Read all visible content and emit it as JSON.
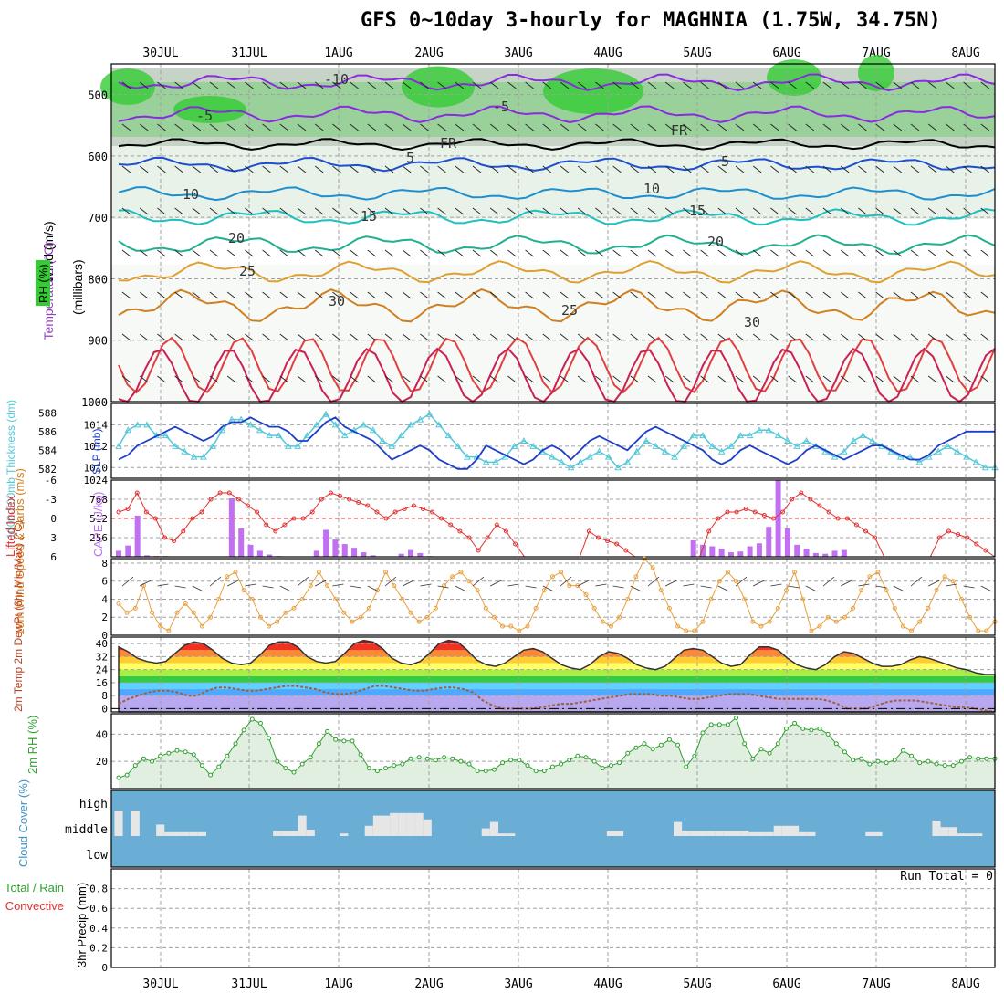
{
  "title": "GFS 0~10day 3-hourly for MAGHNIA (1.75W, 34.75N)",
  "dates": [
    "30JUL",
    "31JUL",
    "1AUG",
    "2AUG",
    "3AUG",
    "4AUG",
    "5AUG",
    "6AUG",
    "7AUG",
    "8AUG"
  ],
  "colors": {
    "grid": "#a0a0a0",
    "slp": "#55c8d8",
    "thickness": "#1d3fc9",
    "cape": "#c070f0",
    "lifted": "#e03030",
    "wind": "#e8a040",
    "rh": "#30a030",
    "cloud_bg": "#6aaed6",
    "cloud_fill": "#e6e6e6",
    "dewpt": "#a0603a"
  },
  "chart_data": [
    {
      "type": "heatmap",
      "panel": "upper-air",
      "ylabel_lines": [
        "Wind (m/s)",
        "Temperature (°C)",
        "RH (%)"
      ],
      "ylabel2": "(millibars)",
      "yticks": [
        500,
        600,
        700,
        800,
        900,
        1000
      ],
      "ylim": [
        1000,
        450
      ],
      "contour_labels": [
        "-10",
        "-5",
        "-5",
        "FR",
        "FR",
        "5",
        "5",
        "10",
        "10",
        "15",
        "15",
        "20",
        "20",
        "25",
        "25",
        "30",
        "30"
      ]
    },
    {
      "type": "line",
      "panel": "slp-thickness",
      "ylabel_left": "1000-500mb Thickness (dm)",
      "ylabel_right": "SLP (mb)",
      "yticks_left": [
        582,
        584,
        586,
        588
      ],
      "yticks_right": [
        1010,
        1012,
        1014
      ],
      "ylim_slp": [
        1009,
        1016
      ],
      "series": [
        {
          "name": "SLP (mb)",
          "values": [
            1012,
            1013.5,
            1014,
            1014,
            1013,
            1013,
            1012,
            1011.5,
            1011,
            1011,
            1012,
            1013.5,
            1014.5,
            1014.5,
            1014,
            1013.5,
            1013,
            1013,
            1012,
            1012,
            1013,
            1014,
            1015,
            1014,
            1013,
            1013.5,
            1014,
            1013.5,
            1012.5,
            1012,
            1013,
            1014,
            1014.5,
            1015,
            1014,
            1013,
            1012,
            1011,
            1011,
            1010.5,
            1010.5,
            1011,
            1012,
            1012.5,
            1012,
            1011.5,
            1011,
            1010.5,
            1010,
            1010.5,
            1011,
            1011.5,
            1011,
            1010,
            1010.5,
            1011.5,
            1012.5,
            1012,
            1011.5,
            1011,
            1012,
            1013,
            1013,
            1012,
            1011.5,
            1012,
            1013,
            1013,
            1013.5,
            1013.5,
            1013,
            1012.5,
            1012,
            1012.5,
            1012,
            1011.5,
            1011,
            1011.5,
            1012.5,
            1013,
            1012.5,
            1012,
            1011.5,
            1011,
            1011,
            1010.5,
            1011,
            1011.5,
            1012,
            1011.5,
            1011,
            1010.5,
            1010,
            1010
          ]
        },
        {
          "name": "1000-500mb Thickness (dm)",
          "values": [
            583,
            583.5,
            584.5,
            585,
            585.5,
            586,
            586.5,
            586,
            585.5,
            585,
            585.5,
            586.5,
            587,
            587,
            587.5,
            587,
            586.5,
            586.5,
            586,
            585,
            585,
            586,
            587,
            587.5,
            586.5,
            586,
            585.5,
            585,
            584,
            583,
            583.5,
            584,
            584.5,
            584,
            583,
            582.5,
            582,
            582,
            583,
            584.5,
            584,
            583.5,
            583,
            582.5,
            583,
            584,
            584.5,
            584,
            583,
            584,
            585,
            585.5,
            585,
            584.5,
            584,
            585,
            586,
            586.5,
            586,
            585.5,
            585,
            584.5,
            584,
            583,
            582.5,
            583,
            584,
            584.5,
            584,
            583.5,
            583,
            582.5,
            583,
            584,
            584.5,
            584,
            583.5,
            583,
            583.5,
            584,
            584.5,
            584.5,
            584,
            583.5,
            583,
            583,
            583.5,
            584.5,
            585,
            585.5,
            586,
            586,
            586,
            586
          ]
        }
      ]
    },
    {
      "type": "bar",
      "panel": "cape-li",
      "ylabel_left": "Lifted Index",
      "ylabel_right": "CAPE (J/kg)",
      "yticks_left": [
        "-6",
        "-3",
        "0",
        "3",
        "6"
      ],
      "yticks_right": [
        256,
        512,
        768,
        1024
      ],
      "ylim_cape": [
        0,
        1024
      ],
      "series": [
        {
          "name": "CAPE (J/kg)",
          "values": [
            80,
            150,
            550,
            20,
            10,
            10,
            0,
            0,
            0,
            0,
            0,
            0,
            780,
            380,
            160,
            80,
            30,
            10,
            0,
            0,
            0,
            80,
            360,
            230,
            170,
            120,
            60,
            20,
            0,
            0,
            40,
            90,
            50,
            10,
            0,
            0,
            0,
            0,
            0,
            0,
            0,
            0,
            0,
            0,
            0,
            0,
            0,
            0,
            0,
            0,
            0,
            0,
            0,
            0,
            0,
            0,
            0,
            0,
            0,
            0,
            0,
            220,
            160,
            140,
            110,
            60,
            70,
            140,
            180,
            400,
            1024,
            380,
            160,
            110,
            50,
            40,
            80,
            90,
            0,
            0,
            0,
            0,
            0,
            0,
            0,
            0,
            0,
            0,
            0,
            0,
            0,
            0,
            0,
            0
          ]
        },
        {
          "name": "Lifted Index",
          "values": [
            -1,
            -1.5,
            -4,
            -1,
            0,
            3,
            3.5,
            2,
            0,
            -1,
            -3,
            -4,
            -4,
            -3,
            -2,
            -1,
            1,
            2,
            1,
            0,
            0,
            -1,
            -3,
            -4,
            -3.5,
            -3,
            -2.5,
            -2,
            -1,
            0,
            -1,
            -1.5,
            -2,
            -1.5,
            -1,
            0,
            1,
            2,
            3,
            5,
            3,
            1,
            2,
            4,
            6,
            6,
            6,
            6,
            6,
            6,
            6,
            2,
            3,
            3.5,
            4,
            5,
            6,
            6,
            6,
            6,
            6,
            6,
            6,
            6,
            2,
            0,
            -1,
            -1,
            -1.5,
            -1,
            -0.5,
            0,
            -1,
            -3,
            -4,
            -3,
            -2,
            -1,
            0,
            0,
            1,
            2,
            3,
            6,
            6,
            6,
            6,
            6,
            6,
            3,
            2,
            2.5,
            3,
            4,
            5,
            6
          ]
        }
      ]
    },
    {
      "type": "line",
      "panel": "wind",
      "ylabel": "10m Wind Speed & Barbs (m/s)",
      "yticks": [
        0,
        2,
        4,
        6,
        8
      ],
      "ylim": [
        0,
        8.5
      ],
      "series": [
        {
          "name": "10m Wind Speed",
          "values": [
            3.5,
            2.5,
            3,
            5.5,
            2.5,
            1,
            0.5,
            2.5,
            3.5,
            2.5,
            1,
            2,
            4,
            6.5,
            7,
            5,
            4,
            2,
            1,
            1.5,
            2.5,
            3,
            4,
            5.5,
            7,
            5.5,
            4,
            2.5,
            1.5,
            2,
            3,
            5,
            7,
            5.5,
            4,
            2.5,
            1.5,
            2,
            3,
            5.5,
            6.5,
            7,
            6,
            5,
            3,
            2,
            1,
            1,
            0.5,
            1,
            3,
            5,
            6.5,
            7,
            5.5,
            5.5,
            4.5,
            3,
            1.5,
            1,
            2,
            4,
            6.5,
            8.5,
            7.5,
            5,
            3,
            1,
            0.5,
            0.5,
            1.5,
            4,
            6,
            7,
            6,
            4,
            1.5,
            1,
            1.5,
            3,
            5,
            7,
            4,
            0.5,
            1,
            2,
            1.5,
            2,
            3,
            5,
            6.5,
            7,
            5,
            3,
            1,
            0.5,
            1.5,
            3,
            5,
            6.5,
            6,
            4,
            2,
            0.5,
            0.5,
            1.5
          ]
        }
      ]
    },
    {
      "type": "area",
      "panel": "temp",
      "ylabel": "2m Temp 2m DewPt (6hr Min/Max) (°C)",
      "yticks": [
        0,
        8,
        16,
        24,
        32,
        40
      ],
      "ylim": [
        -2,
        44
      ],
      "series": [
        {
          "name": "2m Temp",
          "values": [
            38,
            35,
            31,
            29,
            28,
            29,
            34,
            39,
            41,
            40,
            36,
            31,
            28,
            27,
            28,
            33,
            39,
            41,
            41,
            38,
            32,
            29,
            28,
            29,
            34,
            40,
            42,
            41,
            37,
            31,
            28,
            27,
            29,
            34,
            40,
            42,
            41,
            36,
            30,
            27,
            26,
            28,
            32,
            36,
            37,
            35,
            31,
            27,
            25,
            24,
            27,
            32,
            35,
            34,
            31,
            27,
            25,
            24,
            26,
            31,
            36,
            37,
            36,
            32,
            28,
            26,
            27,
            33,
            38,
            38,
            36,
            31,
            27,
            25,
            24,
            27,
            32,
            35,
            34,
            31,
            28,
            26,
            26,
            27,
            30,
            32,
            31,
            29,
            27,
            25,
            24,
            22,
            21,
            21
          ]
        },
        {
          "name": "2m DewPt",
          "values": [
            3,
            6,
            8,
            10,
            11,
            11,
            10,
            8,
            8,
            11,
            13,
            13,
            12,
            11,
            11,
            12,
            13,
            14,
            14,
            13,
            12,
            10,
            9,
            9,
            10,
            12,
            14,
            14,
            13,
            12,
            11,
            11,
            12,
            13,
            13,
            12,
            10,
            5,
            2,
            0,
            0,
            0,
            0,
            1,
            2,
            3,
            3,
            4,
            5,
            6,
            7,
            8,
            9,
            9,
            9,
            8,
            8,
            7,
            6,
            6,
            7,
            8,
            9,
            9,
            9,
            8,
            7,
            6,
            6,
            6,
            6,
            6,
            5,
            3,
            0,
            0,
            0,
            2,
            4,
            5,
            5,
            5,
            4,
            3,
            2,
            1,
            1,
            0,
            -1,
            -2
          ]
        }
      ]
    },
    {
      "type": "area",
      "panel": "rh",
      "ylabel": "2m RH (%)",
      "yticks": [
        20,
        40
      ],
      "ylim": [
        0,
        55
      ],
      "series": [
        {
          "name": "2m RH",
          "values": [
            8,
            10,
            17,
            22,
            20,
            24,
            26,
            28,
            27,
            25,
            17,
            10,
            16,
            24,
            33,
            43,
            51,
            48,
            37,
            20,
            15,
            12,
            18,
            23,
            33,
            42,
            36,
            35,
            35,
            25,
            15,
            13,
            15,
            17,
            18,
            22,
            23,
            22,
            21,
            23,
            22,
            20,
            18,
            13,
            13,
            14,
            19,
            21,
            21,
            17,
            13,
            13,
            16,
            18,
            21,
            24,
            23,
            20,
            15,
            17,
            19,
            26,
            30,
            33,
            29,
            32,
            36,
            32,
            16,
            24,
            41,
            47,
            47,
            47,
            52,
            33,
            22,
            29,
            26,
            33,
            44,
            48,
            44,
            43,
            44,
            40,
            33,
            27,
            21,
            22,
            18,
            20,
            19,
            21,
            28,
            24,
            19,
            20,
            18,
            17,
            17,
            20,
            23,
            22,
            22,
            22
          ]
        }
      ]
    },
    {
      "type": "bar",
      "panel": "cloud",
      "ylabel": "Cloud Cover (%)",
      "yticks": [
        "high",
        "middle",
        "low"
      ],
      "series": [
        {
          "name": "middle",
          "values": [
            100,
            0,
            100,
            0,
            0,
            45,
            15,
            15,
            15,
            15,
            15,
            0,
            0,
            0,
            0,
            0,
            0,
            0,
            0,
            20,
            20,
            20,
            80,
            25,
            0,
            0,
            0,
            10,
            0,
            0,
            40,
            80,
            80,
            90,
            90,
            90,
            90,
            65,
            0,
            0,
            0,
            0,
            0,
            0,
            30,
            55,
            10,
            10,
            0,
            0,
            0,
            0,
            0,
            0,
            0,
            0,
            0,
            0,
            0,
            20,
            20,
            0,
            0,
            0,
            0,
            0,
            0,
            55,
            20,
            20,
            20,
            20,
            20,
            20,
            20,
            20,
            15,
            15,
            15,
            40,
            40,
            40,
            15,
            15,
            0,
            0,
            0,
            0,
            0,
            0,
            15,
            15,
            0,
            0,
            0,
            0,
            0,
            0,
            60,
            35,
            35,
            10,
            10,
            10,
            0,
            0
          ]
        }
      ]
    },
    {
      "type": "line",
      "panel": "precip",
      "ylabel": "3hr Precip (mm)",
      "ylabel_extra": [
        "Total / Rain",
        "Convective"
      ],
      "yticks": [
        0,
        0.2,
        0.4,
        0.6,
        0.8
      ],
      "ylim": [
        0,
        1
      ],
      "annotation": "Run Total = 0",
      "series": [
        {
          "name": "Total / Rain",
          "values": [
            0,
            0,
            0,
            0,
            0,
            0,
            0,
            0,
            0,
            0
          ]
        },
        {
          "name": "Convective",
          "values": [
            0,
            0,
            0,
            0,
            0,
            0,
            0,
            0,
            0,
            0
          ]
        }
      ]
    }
  ]
}
